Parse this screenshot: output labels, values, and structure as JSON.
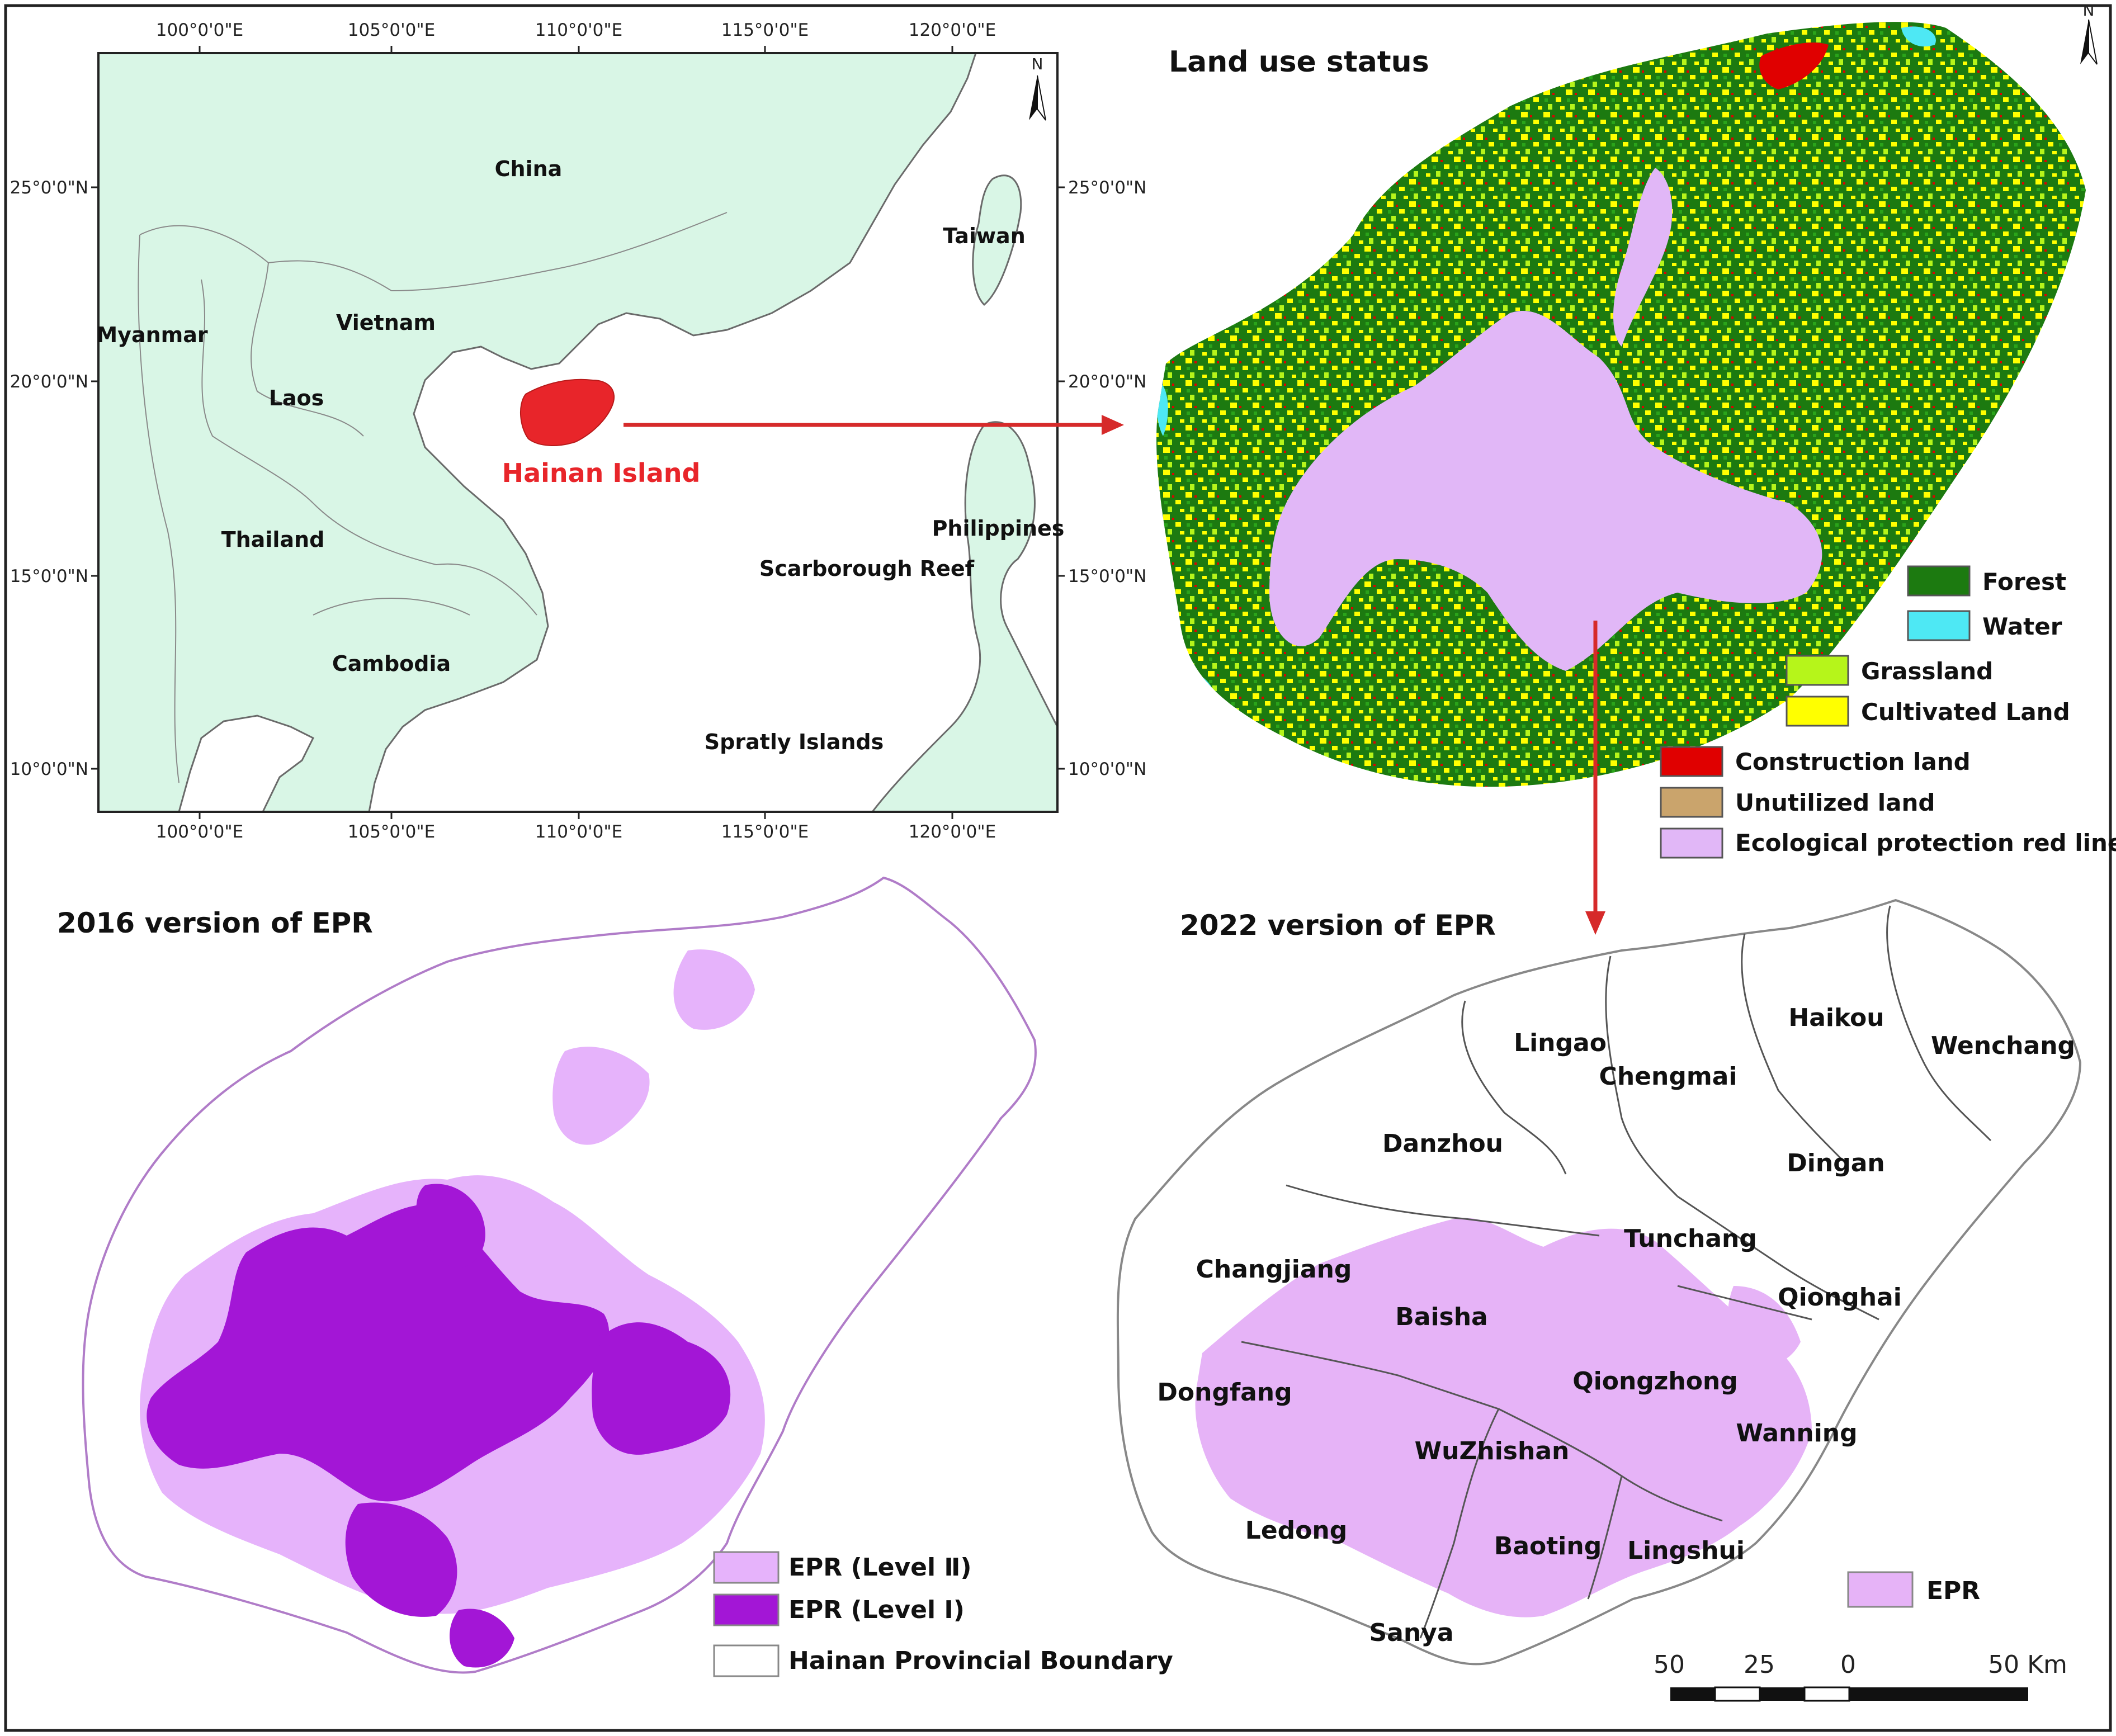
{
  "colors": {
    "frame": "#222222",
    "sea": "#ffffff",
    "land": "#d9f6e6",
    "hainan_red": "#e8252a",
    "arrow": "#d62a2a",
    "forest": "#1c7a10",
    "water": "#4ee8f4",
    "grassland": "#b6f51a",
    "cultivated": "#ffff00",
    "construction": "#e00000",
    "unutilized": "#caa46c",
    "epr_red_line": "#e1b7f7",
    "epr_level2": "#e6b3fb",
    "epr_level1": "#a316d6",
    "epr": "#e6b3f7"
  },
  "icons": {
    "north_arrow": "north-arrow-icon"
  },
  "location_map": {
    "north": "N",
    "top_ticks": [
      "100°0'0\"E",
      "105°0'0\"E",
      "110°0'0\"E",
      "115°0'0\"E",
      "120°0'0\"E"
    ],
    "bottom_ticks": [
      "100°0'0\"E",
      "105°0'0\"E",
      "110°0'0\"E",
      "115°0'0\"E",
      "120°0'0\"E"
    ],
    "left_ticks": [
      "25°0'0\"N",
      "20°0'0\"N",
      "15°0'0\"N",
      "10°0'0\"N"
    ],
    "right_ticks": [
      "25°0'0\"N",
      "20°0'0\"N",
      "15°0'0\"N",
      "10°0'0\"N"
    ],
    "places": {
      "china": "China",
      "taiwan": "Taiwan",
      "vietnam": "Vietnam",
      "myanmar": "Myanmar",
      "laos": "Laos",
      "thailand": "Thailand",
      "cambodia": "Cambodia",
      "philippines": "Philippines",
      "scarborough": "Scarborough Reef",
      "spratly": "Spratly Islands",
      "hainan": "Hainan Island"
    }
  },
  "land_use": {
    "title": "Land use status",
    "north": "N",
    "legend": {
      "forest": "Forest",
      "water": "Water",
      "grassland": "Grassland",
      "cultivated": "Cultivated Land",
      "construction": "Construction land",
      "unutilized": "Unutilized land",
      "red_line": "Ecological protection red line"
    }
  },
  "epr_2016": {
    "title": "2016 version of EPR",
    "legend": {
      "level2": "EPR (Level Ⅱ)",
      "level1": "EPR (Level Ⅰ)",
      "boundary": "Hainan Provincial Boundary"
    }
  },
  "epr_2022": {
    "title": "2022 version of EPR",
    "legend": {
      "epr": "EPR"
    },
    "counties": {
      "lingao": "Lingao",
      "haikou": "Haikou",
      "wenchang": "Wenchang",
      "chengmai": "Chengmai",
      "danzhou": "Danzhou",
      "dingan": "Dingan",
      "tunchang": "Tunchang",
      "changjiang": "Changjiang",
      "qionghai": "Qionghai",
      "baisha": "Baisha",
      "qiongzhong": "Qiongzhong",
      "dongfang": "Dongfang",
      "wanning": "Wanning",
      "wuzhishan": "WuZhishan",
      "ledong": "Ledong",
      "baoting": "Baoting",
      "lingshui": "Lingshui",
      "sanya": "Sanya"
    },
    "scale_bar": [
      "50",
      "25",
      "0",
      "50 Km"
    ]
  }
}
